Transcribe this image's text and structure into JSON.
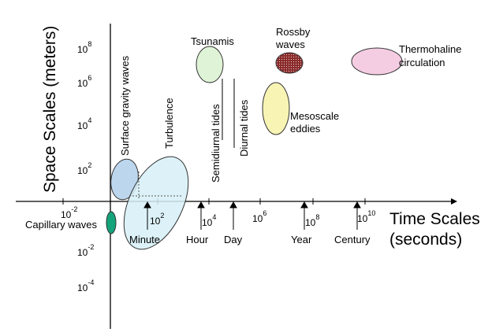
{
  "axes": {
    "y_title": "Space Scales (meters)",
    "x_title_line1": "Time Scales",
    "x_title_line2": "(seconds)"
  },
  "y_ticks": [
    {
      "base": "10",
      "exp": "8"
    },
    {
      "base": "10",
      "exp": "6"
    },
    {
      "base": "10",
      "exp": "4"
    },
    {
      "base": "10",
      "exp": "2"
    },
    {
      "base": "10",
      "exp": "-2"
    },
    {
      "base": "10",
      "exp": "-4"
    }
  ],
  "x_ticks": [
    {
      "base": "10",
      "exp": "-2"
    },
    {
      "base": "10",
      "exp": "2"
    },
    {
      "base": "10",
      "exp": "4"
    },
    {
      "base": "10",
      "exp": "6"
    },
    {
      "base": "10",
      "exp": "8"
    },
    {
      "base": "10",
      "exp": "10"
    }
  ],
  "time_markers": [
    "Minute",
    "Hour",
    "Day",
    "Year",
    "Century"
  ],
  "phenomena": {
    "capillary": "Capillary waves",
    "surface_gravity": "Surface gravity waves",
    "turbulence": "Turbulence",
    "semidiurnal": "Semidiurnal tides",
    "diurnal": "Diurnal tides",
    "tsunamis": "Tsunamis",
    "rossby_1": "Rossby",
    "rossby_2": "waves",
    "mesoscale_1": "Mesoscale",
    "mesoscale_2": "eddies",
    "thermohaline_1": "Thermohaline",
    "thermohaline_2": "circulation"
  },
  "colors": {
    "capillary": "#14a37a",
    "surface_gravity": "#bcd6ee",
    "turbulence": "#d6f0f7",
    "tsunamis": "#dff3d6",
    "mesoscale": "#f7f4b4",
    "rossby": "#8a2c2c",
    "thermohaline": "#f5cde3"
  }
}
